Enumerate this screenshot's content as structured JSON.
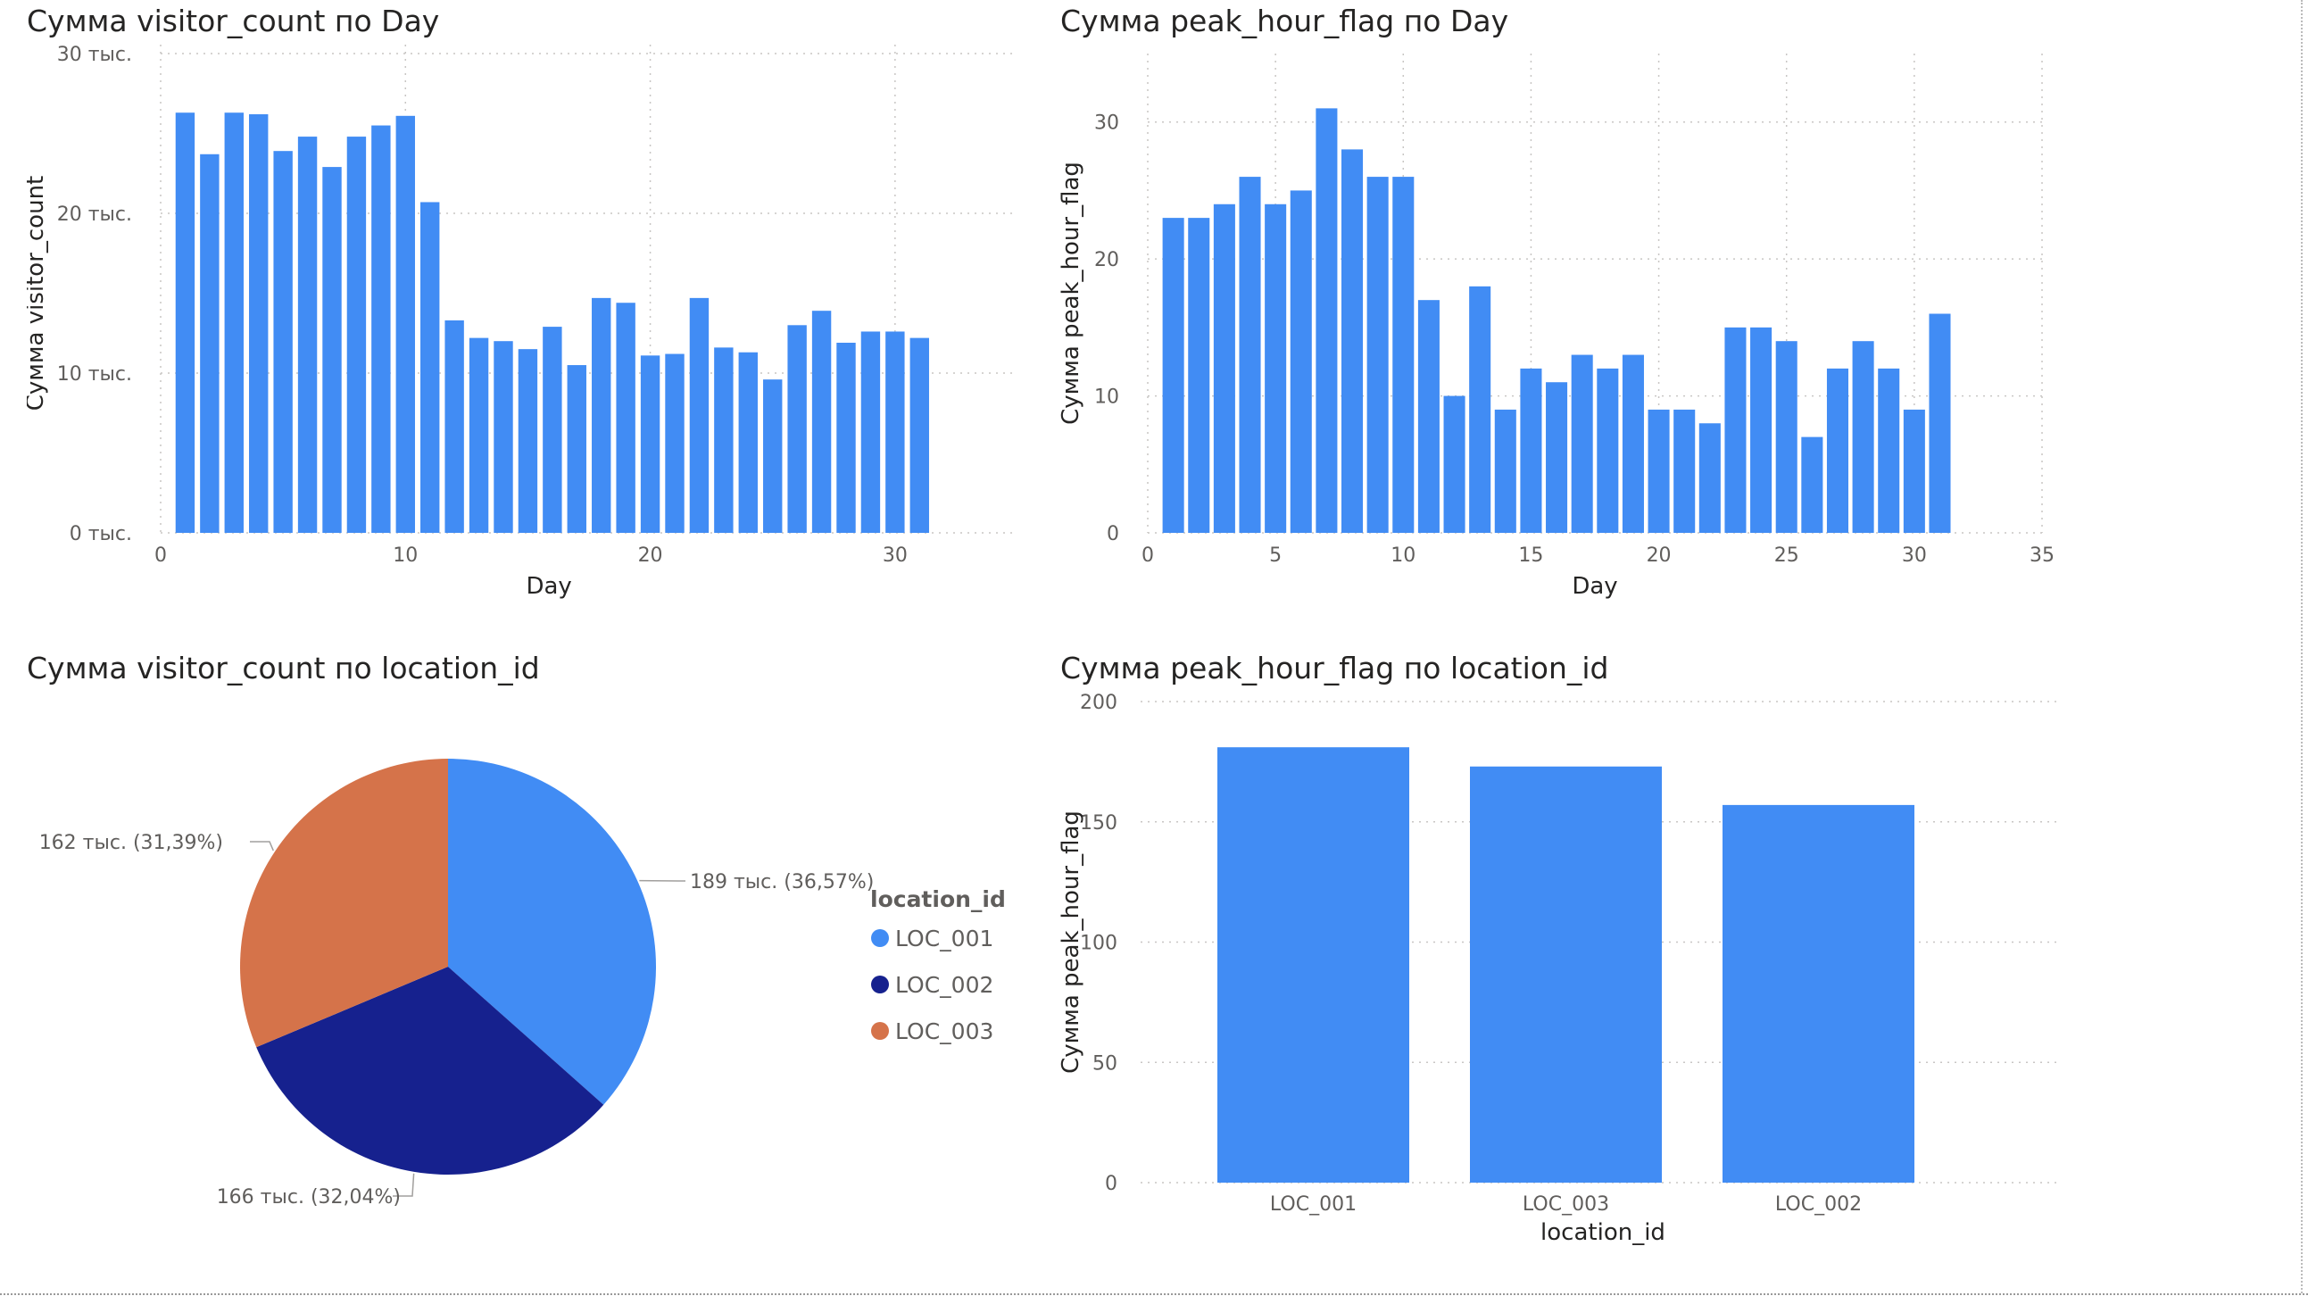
{
  "colors": {
    "bar": "#418cf4",
    "loc1": "#418cf4",
    "loc2": "#16218e",
    "loc3": "#d5734a",
    "grid": "#c8c6c4"
  },
  "chart_data": [
    {
      "type": "bar",
      "title": "Сумма visitor_count по Day",
      "xlabel": "Day",
      "ylabel": "Сумма visitor_count",
      "x": [
        1,
        2,
        3,
        4,
        5,
        6,
        7,
        8,
        9,
        10,
        11,
        12,
        13,
        14,
        15,
        16,
        17,
        18,
        19,
        20,
        21,
        22,
        23,
        24,
        25,
        26,
        27,
        28,
        29,
        30,
        31
      ],
      "values": [
        26300,
        23700,
        26300,
        26200,
        23900,
        24800,
        22900,
        24800,
        25500,
        26100,
        20700,
        13300,
        12200,
        12000,
        11500,
        12900,
        10500,
        14700,
        14400,
        11100,
        11200,
        14700,
        11600,
        11300,
        9600,
        13000,
        13900,
        11900,
        12600,
        12600,
        12200
      ],
      "xlim": [
        0,
        35
      ],
      "ylim": [
        0,
        30000
      ],
      "xticks": [
        "0",
        "10",
        "20",
        "30"
      ],
      "yticks": [
        "0 тыс.",
        "10 тыс.",
        "20 тыс.",
        "30 тыс."
      ]
    },
    {
      "type": "bar",
      "title": "Сумма peak_hour_flag по Day",
      "xlabel": "Day",
      "ylabel": "Сумма peak_hour_flag",
      "x": [
        1,
        2,
        3,
        4,
        5,
        6,
        7,
        8,
        9,
        10,
        11,
        12,
        13,
        14,
        15,
        16,
        17,
        18,
        19,
        20,
        21,
        22,
        23,
        24,
        25,
        26,
        27,
        28,
        29,
        30,
        31
      ],
      "values": [
        23,
        23,
        24,
        26,
        24,
        25,
        31,
        28,
        26,
        26,
        17,
        10,
        18,
        9,
        12,
        11,
        13,
        12,
        13,
        9,
        9,
        8,
        15,
        15,
        14,
        7,
        12,
        14,
        12,
        9,
        16
      ],
      "xlim": [
        0,
        35
      ],
      "ylim": [
        0,
        35
      ],
      "xticks": [
        "0",
        "5",
        "10",
        "15",
        "20",
        "25",
        "30",
        "35"
      ],
      "yticks": [
        "0",
        "10",
        "20",
        "30"
      ]
    },
    {
      "type": "pie",
      "title": "Сумма visitor_count по location_id",
      "legend_title": "location_id",
      "legend_position": "right",
      "slices": [
        {
          "name": "LOC_001",
          "value": 189,
          "label": "189 тыс. (36,57%)"
        },
        {
          "name": "LOC_002",
          "value": 166,
          "label": "166 тыс. (32,04%)"
        },
        {
          "name": "LOC_003",
          "value": 162,
          "label": "162 тыс. (31,39%)"
        }
      ]
    },
    {
      "type": "bar",
      "title": "Сумма peak_hour_flag по location_id",
      "xlabel": "location_id",
      "ylabel": "Сумма peak_hour_flag",
      "categories": [
        "LOC_001",
        "LOC_003",
        "LOC_002"
      ],
      "values": [
        181,
        173,
        157
      ],
      "ylim": [
        0,
        200
      ],
      "yticks": [
        "0",
        "50",
        "100",
        "150",
        "200"
      ]
    }
  ]
}
